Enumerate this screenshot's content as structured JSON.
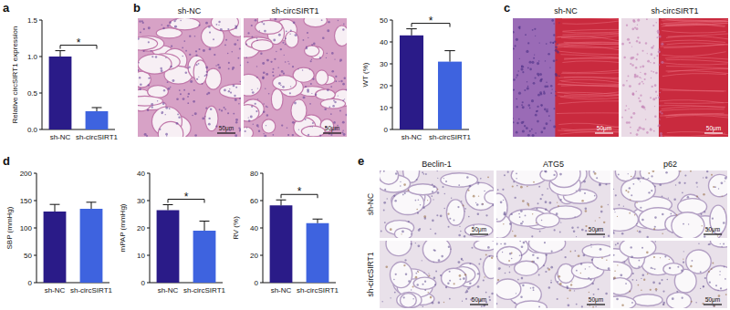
{
  "chart_data": [
    {
      "type": "bar",
      "ylabel": "Relative circSIRT1 expression",
      "categories": [
        "sh-NC",
        "sh-circSIRT1"
      ],
      "values": [
        1,
        0.25
      ],
      "errors": [
        0.08,
        0.05
      ],
      "colors": [
        "#2a1b88",
        "#3e63df"
      ],
      "ylim": [
        0,
        1.5
      ],
      "yticks": [
        {
          "value": 0,
          "label": "0.0"
        },
        0.5,
        {
          "value": 1,
          "label": "1.0"
        },
        1.5
      ],
      "annotations": [
        "*"
      ]
    },
    {
      "type": "bar",
      "ylabel": "WT (%)",
      "categories": [
        "sh-NC",
        "sh-circSIRT1"
      ],
      "values": [
        43,
        31
      ],
      "errors": [
        3,
        5
      ],
      "colors": [
        "#2a1b88",
        "#3e63df"
      ],
      "ylim": [
        0,
        50
      ],
      "yticks": [
        0,
        10,
        20,
        30,
        40,
        50
      ],
      "annotations": [
        "*"
      ]
    },
    {
      "type": "bar",
      "ylabel": "SBP (mmHg)",
      "categories": [
        "sh-NC",
        "sh-circSIRT1"
      ],
      "values": [
        130,
        135
      ],
      "errors": [
        13,
        12
      ],
      "colors": [
        "#2a1b88",
        "#3e63df"
      ],
      "ylim": [
        0,
        200
      ],
      "yticks": [
        0,
        50,
        100,
        150,
        200
      ],
      "annotations": []
    },
    {
      "type": "bar",
      "ylabel": "mPAP (mmHg)",
      "categories": [
        "sh-NC",
        "sh-circSIRT1"
      ],
      "values": [
        26.5,
        19
      ],
      "errors": [
        2,
        3.5
      ],
      "colors": [
        "#2a1b88",
        "#3e63df"
      ],
      "ylim": [
        0,
        40
      ],
      "yticks": [
        0,
        10,
        20,
        30,
        40
      ],
      "annotations": [
        "*"
      ]
    },
    {
      "type": "bar",
      "ylabel": "RV (%)",
      "categories": [
        "sh-NC",
        "sh-circSIRT1"
      ],
      "values": [
        56.5,
        43.5
      ],
      "errors": [
        4,
        3
      ],
      "colors": [
        "#2a1b88",
        "#3e63df"
      ],
      "ylim": [
        0,
        80
      ],
      "yticks": [
        0,
        20,
        40,
        60,
        80
      ],
      "annotations": [
        "*"
      ]
    }
  ],
  "panel_letters": [
    "a",
    "b",
    "c",
    "d",
    "e"
  ],
  "images": {
    "b": {
      "labels": [
        "sh-NC",
        "sh-circSIRT1"
      ],
      "scale_bar": "50μm"
    },
    "c": {
      "labels": [
        "sh-NC",
        "sh-circSIRT1"
      ],
      "scale_bar": "50μm"
    },
    "e": {
      "columns": [
        "Beclin-1",
        "ATG5",
        "p62"
      ],
      "rows": [
        "sh-NC",
        "sh-circSIRT1"
      ],
      "scale_bar": "50μm"
    }
  }
}
